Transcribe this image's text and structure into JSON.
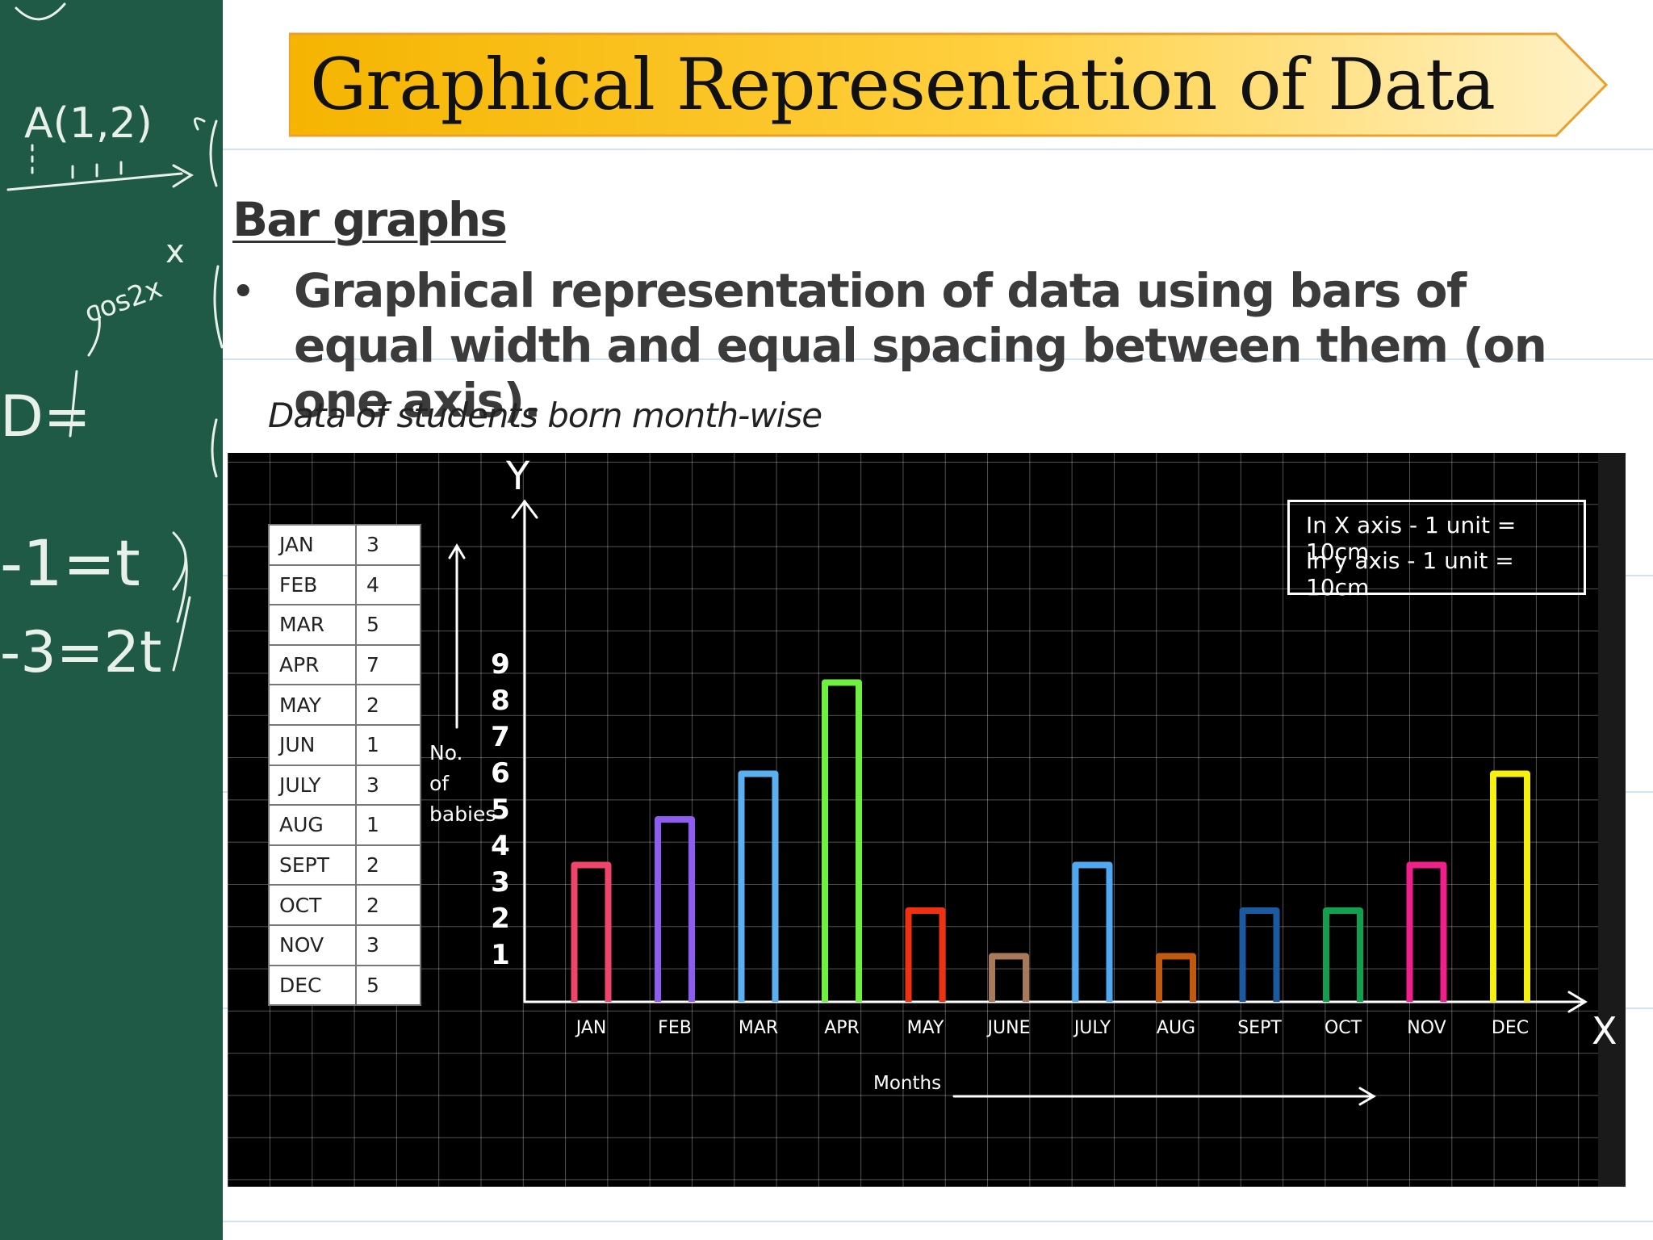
{
  "title": "Graphical Representation of Data",
  "section_heading": "Bar graphs",
  "bullet_text": "Graphical representation of data using bars of equal width and equal spacing between them (on one axis).",
  "chart_caption": "Data of students born month-wise",
  "chalkboard": {
    "point_label": "A(1,2)",
    "eq1": "-1=t",
    "eq2": "-3=2t"
  },
  "table": {
    "rows": [
      {
        "month": "JAN",
        "value": "3"
      },
      {
        "month": "FEB",
        "value": "4"
      },
      {
        "month": "MAR",
        "value": "5"
      },
      {
        "month": "APR",
        "value": "7"
      },
      {
        "month": "MAY",
        "value": "2"
      },
      {
        "month": "JUN",
        "value": "1"
      },
      {
        "month": "JULY",
        "value": "3"
      },
      {
        "month": "AUG",
        "value": "1"
      },
      {
        "month": "SEPT",
        "value": "2"
      },
      {
        "month": "OCT",
        "value": "2"
      },
      {
        "month": "NOV",
        "value": "3"
      },
      {
        "month": "DEC",
        "value": "5"
      }
    ]
  },
  "scale_box": {
    "line1": "In X axis - 1 unit  = 10cm",
    "line2": "In y axis - 1 unit = 10cm"
  },
  "chart_data": {
    "type": "bar",
    "title": "",
    "xlabel": "Months",
    "ylabel": "No. of babies",
    "ylabel_lines": [
      "No.",
      "of",
      "babies"
    ],
    "x_axis_letter": "X",
    "y_axis_letter": "Y",
    "categories": [
      "JAN",
      "FEB",
      "MAR",
      "APR",
      "MAY",
      "JUNE",
      "JULY",
      "AUG",
      "SEPT",
      "OCT",
      "NOV",
      "DEC"
    ],
    "values": [
      3,
      4,
      5,
      7,
      2,
      1,
      3,
      1,
      2,
      2,
      3,
      5
    ],
    "bar_colors": [
      "#f0446a",
      "#8e5cf0",
      "#5ab0f0",
      "#6ef040",
      "#f03010",
      "#a87a5a",
      "#50a8f0",
      "#c05a10",
      "#1a5aa0",
      "#10a050",
      "#f0208a",
      "#f5f010"
    ],
    "y_ticks": [
      1,
      2,
      3,
      4,
      5,
      6,
      7,
      8,
      9
    ],
    "ylim": [
      0,
      9
    ],
    "grid": true
  }
}
